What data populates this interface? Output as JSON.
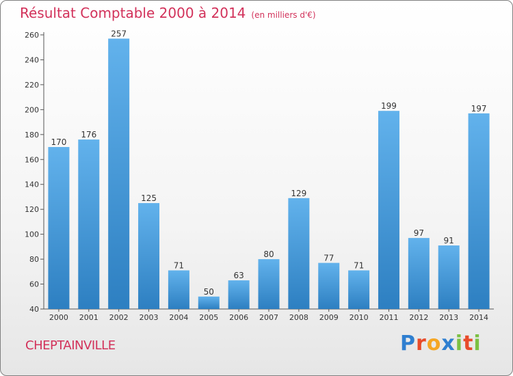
{
  "header": {
    "title": "Résultat Comptable 2000 à 2014",
    "unit": "(en milliers d'€)"
  },
  "footer": {
    "commune": "CHEPTAINVILLE",
    "brand_letters": [
      "P",
      "r",
      "o",
      "x",
      "i",
      "t",
      "i"
    ],
    "brand_colors": [
      "#2f7fd0",
      "#e84b2a",
      "#f5a623",
      "#2f7fd0",
      "#7cc043",
      "#e84b2a",
      "#7cc043"
    ]
  },
  "colors": {
    "title": "#d2315a",
    "bar_top": "#62b2ec",
    "bar_bottom": "#2d7fc1",
    "axis": "#555555"
  },
  "chart_data": {
    "type": "bar",
    "categories": [
      "2000",
      "2001",
      "2002",
      "2003",
      "2004",
      "2005",
      "2006",
      "2007",
      "2008",
      "2009",
      "2010",
      "2011",
      "2012",
      "2013",
      "2014"
    ],
    "values": [
      170,
      176,
      257,
      125,
      71,
      50,
      63,
      80,
      129,
      77,
      71,
      199,
      97,
      91,
      197
    ],
    "ylim": [
      40,
      260
    ],
    "yticks": [
      40,
      60,
      80,
      100,
      120,
      140,
      160,
      180,
      200,
      220,
      240,
      260
    ],
    "grid": false,
    "data_labels": true
  }
}
